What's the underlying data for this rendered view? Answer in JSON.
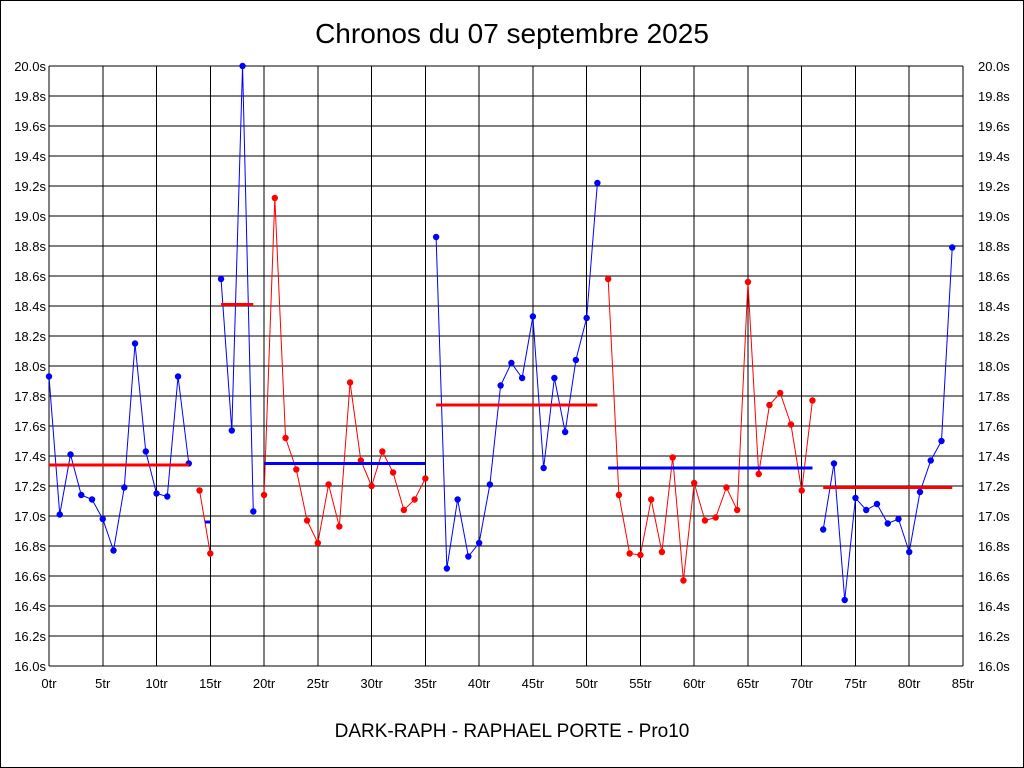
{
  "title": "Chronos du 07 septembre 2025",
  "footer": "DARK-RAPH - RAPHAEL PORTE - Pro10",
  "colors": {
    "blue": "#0000ff",
    "red": "#ff0000",
    "grid": "#000000",
    "background": "#ffffff"
  },
  "chart_data": {
    "type": "line",
    "title": "Chronos du 07 septembre 2025",
    "xlabel": "",
    "ylabel": "",
    "xlim": [
      0,
      85
    ],
    "ylim": [
      16.0,
      20.0
    ],
    "grid": true,
    "x_ticks": [
      {
        "value": 0,
        "label": "0tr"
      },
      {
        "value": 5,
        "label": "5tr"
      },
      {
        "value": 10,
        "label": "10tr"
      },
      {
        "value": 15,
        "label": "15tr"
      },
      {
        "value": 20,
        "label": "20tr"
      },
      {
        "value": 25,
        "label": "25tr"
      },
      {
        "value": 30,
        "label": "30tr"
      },
      {
        "value": 35,
        "label": "35tr"
      },
      {
        "value": 40,
        "label": "40tr"
      },
      {
        "value": 45,
        "label": "45tr"
      },
      {
        "value": 50,
        "label": "50tr"
      },
      {
        "value": 55,
        "label": "55tr"
      },
      {
        "value": 60,
        "label": "60tr"
      },
      {
        "value": 65,
        "label": "65tr"
      },
      {
        "value": 70,
        "label": "70tr"
      },
      {
        "value": 75,
        "label": "75tr"
      },
      {
        "value": 80,
        "label": "80tr"
      },
      {
        "value": 85,
        "label": "85tr"
      }
    ],
    "y_ticks": [
      {
        "value": 16.0,
        "label": "16.0s"
      },
      {
        "value": 16.2,
        "label": "16.2s"
      },
      {
        "value": 16.4,
        "label": "16.4s"
      },
      {
        "value": 16.6,
        "label": "16.6s"
      },
      {
        "value": 16.8,
        "label": "16.8s"
      },
      {
        "value": 17.0,
        "label": "17.0s"
      },
      {
        "value": 17.2,
        "label": "17.2s"
      },
      {
        "value": 17.4,
        "label": "17.4s"
      },
      {
        "value": 17.6,
        "label": "17.6s"
      },
      {
        "value": 17.8,
        "label": "17.8s"
      },
      {
        "value": 18.0,
        "label": "18.0s"
      },
      {
        "value": 18.2,
        "label": "18.2s"
      },
      {
        "value": 18.4,
        "label": "18.4s"
      },
      {
        "value": 18.6,
        "label": "18.6s"
      },
      {
        "value": 18.8,
        "label": "18.8s"
      },
      {
        "value": 19.0,
        "label": "19.0s"
      },
      {
        "value": 19.2,
        "label": "19.2s"
      },
      {
        "value": 19.4,
        "label": "19.4s"
      },
      {
        "value": 19.6,
        "label": "19.6s"
      },
      {
        "value": 19.8,
        "label": "19.8s"
      },
      {
        "value": 20.0,
        "label": "20.0s"
      }
    ],
    "series": [
      {
        "color": "blue",
        "x": [
          0,
          1,
          2,
          3,
          4,
          5,
          6,
          7,
          8,
          9,
          10,
          11,
          12,
          13
        ],
        "values": [
          17.93,
          17.01,
          17.41,
          17.14,
          17.11,
          16.98,
          16.77,
          17.19,
          18.15,
          17.43,
          17.15,
          17.13,
          17.93,
          17.35
        ]
      },
      {
        "color": "red",
        "x": [
          14,
          15
        ],
        "values": [
          17.17,
          16.75
        ]
      },
      {
        "color": "blue",
        "x": [
          16,
          17,
          18,
          19
        ],
        "values": [
          18.58,
          17.57,
          20.0,
          17.03
        ]
      },
      {
        "color": "red",
        "x": [
          20,
          21,
          22,
          23,
          24,
          25,
          26,
          27,
          28,
          29,
          30,
          31,
          32,
          33,
          34,
          35
        ],
        "values": [
          17.14,
          19.12,
          17.52,
          17.31,
          16.97,
          16.82,
          17.21,
          16.93,
          17.89,
          17.37,
          17.2,
          17.43,
          17.29,
          17.04,
          17.11,
          17.25
        ]
      },
      {
        "color": "blue",
        "x": [
          36,
          37,
          38,
          39,
          40,
          41,
          42,
          43,
          44,
          45,
          46,
          47,
          48,
          49,
          50,
          51
        ],
        "values": [
          18.86,
          16.65,
          17.11,
          16.73,
          16.82,
          17.21,
          17.87,
          18.02,
          17.92,
          18.33,
          17.32,
          17.92,
          17.56,
          18.04,
          18.32,
          19.22
        ]
      },
      {
        "color": "red",
        "x": [
          52,
          53,
          54,
          55,
          56,
          57,
          58,
          59,
          60,
          61,
          62,
          63,
          64,
          65,
          66,
          67,
          68,
          69,
          70,
          71
        ],
        "values": [
          18.58,
          17.14,
          16.75,
          16.74,
          17.11,
          16.76,
          17.39,
          16.57,
          17.22,
          16.97,
          16.99,
          17.19,
          17.04,
          18.56,
          17.28,
          17.74,
          17.82,
          17.61,
          17.17,
          17.77
        ]
      },
      {
        "color": "blue",
        "x": [
          72,
          73,
          74,
          75,
          76,
          77,
          78,
          79,
          80,
          81,
          82,
          83,
          84
        ],
        "values": [
          16.91,
          17.35,
          16.44,
          17.12,
          17.04,
          17.08,
          16.95,
          16.98,
          16.76,
          17.16,
          17.37,
          17.5,
          18.79
        ]
      }
    ],
    "averages": [
      {
        "color": "red",
        "x0": 0,
        "x1": 13,
        "value": 17.34
      },
      {
        "color": "blue",
        "x0": 14.5,
        "x1": 15,
        "value": 16.96
      },
      {
        "color": "red",
        "x0": 16,
        "x1": 19,
        "value": 18.41
      },
      {
        "color": "blue",
        "x0": 20,
        "x1": 35,
        "value": 17.35
      },
      {
        "color": "red",
        "x0": 36,
        "x1": 51,
        "value": 17.74
      },
      {
        "color": "blue",
        "x0": 52,
        "x1": 71,
        "value": 17.32
      },
      {
        "color": "red",
        "x0": 72,
        "x1": 84,
        "value": 17.19
      }
    ]
  }
}
